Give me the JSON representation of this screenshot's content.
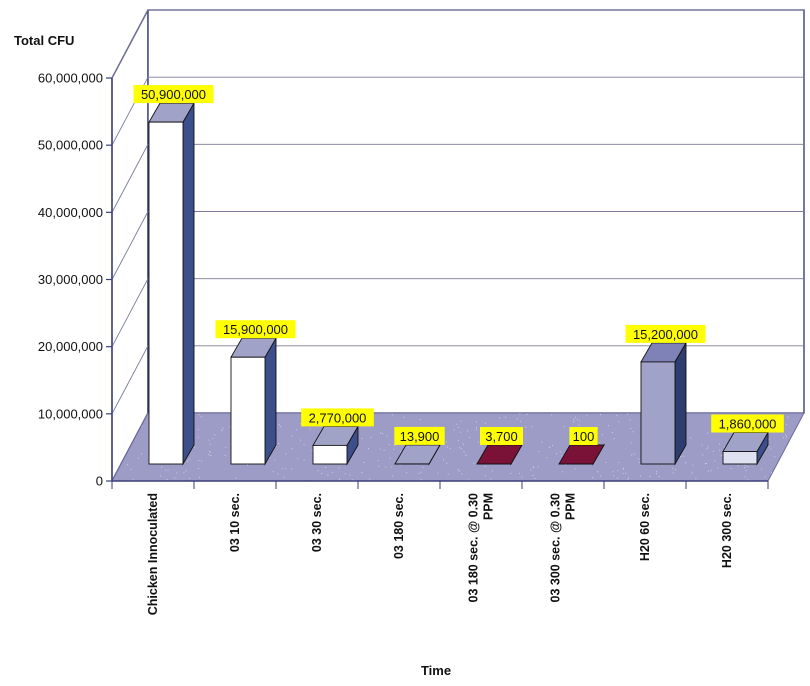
{
  "chart_data": {
    "type": "bar",
    "ylabel": "Total CFU",
    "xlabel": "Time",
    "ylim": [
      0,
      60000000
    ],
    "ytick_values": [
      0,
      10000000,
      20000000,
      30000000,
      40000000,
      50000000,
      60000000
    ],
    "ytick_labels": [
      "0",
      "10,000,000",
      "20,000,000",
      "30,000,000",
      "40,000,000",
      "50,000,000",
      "60,000,000"
    ],
    "grid": true,
    "categories": [
      [
        "Chicken Innoculated"
      ],
      [
        "03 10 sec."
      ],
      [
        "03 30 sec."
      ],
      [
        "03 180 sec."
      ],
      [
        "03 180 sec. @ 0.30",
        "PPM"
      ],
      [
        "03 300 sec. @ 0.30",
        "PPM"
      ],
      [
        "H20 60 sec."
      ],
      [
        "H20 300 sec."
      ]
    ],
    "values": [
      50900000,
      15900000,
      2770000,
      13900,
      3700,
      100,
      15200000,
      1860000
    ],
    "data_labels": [
      "50,900,000",
      "15,900,000",
      "2,770,000",
      "13,900",
      "3,700",
      "100",
      "15,200,000",
      "1,860,000"
    ],
    "colors": {
      "floor": "#9c9cc6",
      "label_bg": "#ffff00",
      "bar_white": "#ffffff",
      "bar_side": "#3d4f8a",
      "bar_grey": "#a0a2c8",
      "bar_dark": "#7a1238",
      "axis": "#3a3f7a"
    }
  }
}
